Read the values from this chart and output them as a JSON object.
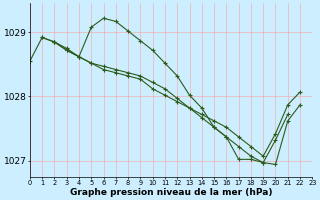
{
  "background_color": "#cceeff",
  "grid_color": "#ff9999",
  "line_color": "#2d5a1b",
  "xlabel": "Graphe pression niveau de la mer (hPa)",
  "line1_x": [
    0,
    1,
    2,
    3,
    4,
    5,
    6,
    7,
    8,
    9,
    10,
    11,
    12,
    13,
    14,
    15,
    16,
    17,
    18,
    19,
    20,
    21
  ],
  "line1_y": [
    1028.55,
    1028.92,
    1028.85,
    1028.72,
    1028.62,
    1029.08,
    1029.22,
    1029.17,
    1029.02,
    1028.87,
    1028.72,
    1028.52,
    1028.32,
    1028.02,
    1027.82,
    1027.52,
    1027.37,
    1027.02,
    1027.02,
    1026.97,
    1027.32,
    1027.72
  ],
  "line2_x": [
    1,
    2,
    3,
    4,
    5,
    6,
    7,
    8,
    9,
    10,
    11,
    12,
    13,
    14,
    15,
    16,
    17,
    18,
    19,
    20,
    21,
    22
  ],
  "line2_y": [
    1028.92,
    1028.85,
    1028.72,
    1028.62,
    1028.52,
    1028.42,
    1028.37,
    1028.32,
    1028.27,
    1028.12,
    1028.02,
    1027.92,
    1027.82,
    1027.72,
    1027.62,
    1027.52,
    1027.37,
    1027.22,
    1027.07,
    1027.42,
    1027.87,
    1028.07
  ],
  "line3_x": [
    2,
    3,
    4,
    5,
    6,
    7,
    8,
    9,
    10,
    11,
    12,
    13,
    14,
    15,
    16,
    17,
    18,
    19,
    20,
    21,
    22
  ],
  "line3_y": [
    1028.85,
    1028.75,
    1028.62,
    1028.52,
    1028.47,
    1028.42,
    1028.37,
    1028.32,
    1028.22,
    1028.12,
    1027.97,
    1027.82,
    1027.67,
    1027.52,
    1027.37,
    1027.22,
    1027.07,
    1026.97,
    1026.94,
    1027.62,
    1027.87
  ],
  "ylim": [
    1026.75,
    1029.45
  ],
  "yticks": [
    1027.0,
    1028.0,
    1029.0
  ],
  "xlim": [
    0,
    23
  ],
  "xticks": [
    0,
    1,
    2,
    3,
    4,
    5,
    6,
    7,
    8,
    9,
    10,
    11,
    12,
    13,
    14,
    15,
    16,
    17,
    18,
    19,
    20,
    21,
    22,
    23
  ]
}
